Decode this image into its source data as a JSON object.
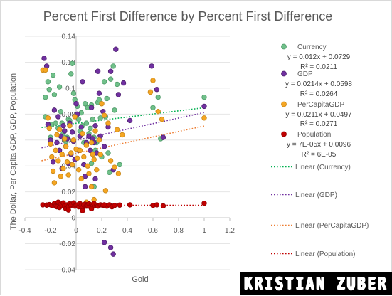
{
  "chart_data": {
    "type": "scatter",
    "title": "Percent First Difference by Percent First Difference",
    "xlabel": "Gold",
    "ylabel": "The Dollar, Per Capita GDP, GDP, Population",
    "xlim": [
      -0.4,
      1.2
    ],
    "ylim": [
      -0.04,
      0.14
    ],
    "x_ticks": [
      "-0.4",
      "-0.2",
      "0",
      "0.2",
      "0.4",
      "0.6",
      "0.8",
      "1",
      "1.2"
    ],
    "y_ticks": [
      "-0.04",
      "-0.02",
      "0",
      "0.02",
      "0.04",
      "0.06",
      "0.08",
      "0.1",
      "0.12",
      "0.14"
    ],
    "grid": "horizontal",
    "legend_position": "right",
    "series": [
      {
        "name": "Currency",
        "color": "#70c08a",
        "edge": "#4e9a68",
        "equation": "y = 0.012x + 0.0729",
        "r2": "R² = 0.0211",
        "trend": {
          "name": "Linear (Currency)",
          "slope": 0.012,
          "intercept": 0.0729,
          "color": "#00b050"
        },
        "points": [
          [
            -0.24,
            0.078
          ],
          [
            -0.24,
            0.093
          ],
          [
            -0.22,
            0.105
          ],
          [
            -0.21,
            0.099
          ],
          [
            -0.19,
            0.072
          ],
          [
            -0.18,
            0.11
          ],
          [
            -0.17,
            0.095
          ],
          [
            -0.16,
            0.073
          ],
          [
            -0.14,
            0.069
          ],
          [
            -0.13,
            0.101
          ],
          [
            -0.12,
            0.082
          ],
          [
            -0.11,
            0.073
          ],
          [
            -0.1,
            0.065
          ],
          [
            -0.09,
            0.067
          ],
          [
            -0.08,
            0.059
          ],
          [
            -0.07,
            0.062
          ],
          [
            -0.06,
            0.076
          ],
          [
            -0.05,
            0.075
          ],
          [
            -0.04,
            0.111
          ],
          [
            -0.03,
            0.119
          ],
          [
            -0.02,
            0.096
          ],
          [
            -0.01,
            0.091
          ],
          [
            0.0,
            0.078
          ],
          [
            0.01,
            0.086
          ],
          [
            0.02,
            0.076
          ],
          [
            0.03,
            0.067
          ],
          [
            0.04,
            0.081
          ],
          [
            0.05,
            0.071
          ],
          [
            0.07,
            0.088
          ],
          [
            0.08,
            0.073
          ],
          [
            0.09,
            0.085
          ],
          [
            0.1,
            0.065
          ],
          [
            0.11,
            0.069
          ],
          [
            0.12,
            0.087
          ],
          [
            0.13,
            0.076
          ],
          [
            0.14,
            0.062
          ],
          [
            0.15,
            0.052
          ],
          [
            0.16,
            0.058
          ],
          [
            0.17,
            0.089
          ],
          [
            0.18,
            0.091
          ],
          [
            0.19,
            0.077
          ],
          [
            0.2,
            0.047
          ],
          [
            0.22,
            0.105
          ],
          [
            0.23,
            0.078
          ],
          [
            0.24,
            0.092
          ],
          [
            0.25,
            0.05
          ],
          [
            0.27,
            0.107
          ],
          [
            0.29,
            0.117
          ],
          [
            0.3,
            0.083
          ],
          [
            0.32,
            0.103
          ],
          [
            0.34,
            0.041
          ],
          [
            0.6,
            0.085
          ],
          [
            0.64,
            0.093
          ],
          [
            0.66,
            0.061
          ],
          [
            1.0,
            0.093
          ],
          [
            0.14,
            0.024
          ],
          [
            0.12,
            0.042
          ],
          [
            -0.2,
            0.062
          ],
          [
            0.06,
            0.058
          ],
          [
            0.26,
            0.035
          ]
        ]
      },
      {
        "name": "GDP",
        "color": "#7030a0",
        "edge": "#4f2070",
        "equation": "y = 0.0214x + 0.0598",
        "r2": "R² = 0.0264",
        "trend": {
          "name": "Linear (GDP)",
          "slope": 0.0214,
          "intercept": 0.0598,
          "color": "#7030a0"
        },
        "points": [
          [
            -0.25,
            0.123
          ],
          [
            -0.23,
            0.117
          ],
          [
            -0.22,
            0.072
          ],
          [
            -0.2,
            0.06
          ],
          [
            -0.18,
            0.043
          ],
          [
            -0.17,
            0.083
          ],
          [
            -0.15,
            0.058
          ],
          [
            -0.14,
            0.078
          ],
          [
            -0.13,
            0.052
          ],
          [
            -0.12,
            0.063
          ],
          [
            -0.11,
            0.038
          ],
          [
            -0.1,
            0.071
          ],
          [
            -0.09,
            0.067
          ],
          [
            -0.08,
            0.055
          ],
          [
            -0.07,
            0.061
          ],
          [
            -0.06,
            0.042
          ],
          [
            -0.05,
            0.073
          ],
          [
            -0.04,
            0.049
          ],
          [
            -0.03,
            0.066
          ],
          [
            -0.02,
            0.059
          ],
          [
            -0.01,
            0.045
          ],
          [
            0.0,
            0.088
          ],
          [
            0.01,
            0.08
          ],
          [
            0.02,
            0.052
          ],
          [
            0.03,
            0.063
          ],
          [
            0.04,
            0.07
          ],
          [
            0.05,
            0.105
          ],
          [
            0.06,
            0.041
          ],
          [
            0.07,
            0.032
          ],
          [
            0.08,
            0.058
          ],
          [
            0.1,
            0.063
          ],
          [
            0.11,
            0.052
          ],
          [
            0.12,
            0.085
          ],
          [
            0.13,
            0.061
          ],
          [
            0.14,
            0.058
          ],
          [
            0.15,
            0.071
          ],
          [
            0.16,
            0.05
          ],
          [
            0.17,
            0.113
          ],
          [
            0.18,
            0.096
          ],
          [
            0.19,
            0.063
          ],
          [
            0.21,
            0.082
          ],
          [
            0.22,
            0.055
          ],
          [
            0.25,
            0.07
          ],
          [
            0.27,
            0.113
          ],
          [
            0.29,
            0.037
          ],
          [
            0.31,
            0.13
          ],
          [
            0.33,
            0.095
          ],
          [
            0.37,
            0.104
          ],
          [
            0.42,
            0.075
          ],
          [
            0.59,
            0.117
          ],
          [
            0.63,
            0.099
          ],
          [
            0.68,
            0.062
          ],
          [
            1.0,
            0.086
          ],
          [
            0.22,
            -0.019
          ],
          [
            0.27,
            -0.023
          ],
          [
            0.29,
            -0.028
          ],
          [
            0.15,
            0.03
          ],
          [
            0.07,
            0.024
          ]
        ]
      },
      {
        "name": "PerCapitaGDP",
        "color": "#f5a623",
        "edge": "#c88616",
        "equation": "y = 0.0211x + 0.0497",
        "r2": "R² = 0.0271",
        "trend": {
          "name": "Linear (PerCapitaGDP)",
          "slope": 0.0211,
          "intercept": 0.0497,
          "color": "#ed7d31"
        },
        "points": [
          [
            -0.26,
            0.114
          ],
          [
            -0.24,
            0.114
          ],
          [
            -0.22,
            0.077
          ],
          [
            -0.21,
            0.069
          ],
          [
            -0.2,
            0.057
          ],
          [
            -0.19,
            0.047
          ],
          [
            -0.18,
            0.036
          ],
          [
            -0.17,
            0.027
          ],
          [
            -0.16,
            0.052
          ],
          [
            -0.15,
            0.064
          ],
          [
            -0.14,
            0.044
          ],
          [
            -0.13,
            0.068
          ],
          [
            -0.12,
            0.032
          ],
          [
            -0.11,
            0.049
          ],
          [
            -0.1,
            0.038
          ],
          [
            -0.09,
            0.061
          ],
          [
            -0.08,
            0.055
          ],
          [
            -0.07,
            0.043
          ],
          [
            -0.06,
            0.033
          ],
          [
            -0.05,
            0.071
          ],
          [
            -0.04,
            0.05
          ],
          [
            -0.03,
            0.041
          ],
          [
            -0.02,
            0.06
          ],
          [
            -0.01,
            0.078
          ],
          [
            0.0,
            0.053
          ],
          [
            0.01,
            0.046
          ],
          [
            0.02,
            0.037
          ],
          [
            0.03,
            0.052
          ],
          [
            0.04,
            0.03
          ],
          [
            0.05,
            0.065
          ],
          [
            0.06,
            0.047
          ],
          [
            0.08,
            0.056
          ],
          [
            0.09,
            0.04
          ],
          [
            0.1,
            0.034
          ],
          [
            0.12,
            0.058
          ],
          [
            0.13,
            0.049
          ],
          [
            0.14,
            0.045
          ],
          [
            0.15,
            0.067
          ],
          [
            0.16,
            0.037
          ],
          [
            0.18,
            0.06
          ],
          [
            0.19,
            0.049
          ],
          [
            0.2,
            0.088
          ],
          [
            0.22,
            0.079
          ],
          [
            0.25,
            0.073
          ],
          [
            0.27,
            0.044
          ],
          [
            0.3,
            0.039
          ],
          [
            0.32,
            0.068
          ],
          [
            0.36,
            0.064
          ],
          [
            0.58,
            0.097
          ],
          [
            0.6,
            0.106
          ],
          [
            0.64,
            0.082
          ],
          [
            0.67,
            0.076
          ],
          [
            1.0,
            0.077
          ],
          [
            0.14,
            0.014
          ],
          [
            0.08,
            0.012
          ],
          [
            0.12,
            0.024
          ],
          [
            0.23,
            0.021
          ],
          [
            0.33,
            0.034
          ]
        ]
      },
      {
        "name": "Population",
        "color": "#c00000",
        "edge": "#8e0000",
        "equation": "y = 7E-05x + 0.0096",
        "r2": "R² = 6E-05",
        "trend": {
          "name": "Linear (Population)",
          "slope": 7e-05,
          "intercept": 0.0096,
          "color": "#c00000"
        },
        "points": [
          [
            -0.26,
            0.01
          ],
          [
            -0.23,
            0.0098
          ],
          [
            -0.21,
            0.0102
          ],
          [
            -0.19,
            0.0095
          ],
          [
            -0.17,
            0.011
          ],
          [
            -0.16,
            0.009
          ],
          [
            -0.15,
            0.0085
          ],
          [
            -0.14,
            0.012
          ],
          [
            -0.13,
            0.008
          ],
          [
            -0.12,
            0.0105
          ],
          [
            -0.11,
            0.0095
          ],
          [
            -0.1,
            0.0115
          ],
          [
            -0.09,
            0.009
          ],
          [
            -0.08,
            0.007
          ],
          [
            -0.07,
            0.01
          ],
          [
            -0.06,
            0.0088
          ],
          [
            -0.05,
            0.0108
          ],
          [
            -0.04,
            0.0095
          ],
          [
            -0.03,
            0.0102
          ],
          [
            -0.02,
            0.0115
          ],
          [
            -0.01,
            0.009
          ],
          [
            0.0,
            0.0095
          ],
          [
            0.01,
            0.01
          ],
          [
            0.02,
            0.0085
          ],
          [
            0.03,
            0.011
          ],
          [
            0.04,
            0.0095
          ],
          [
            0.05,
            0.008
          ],
          [
            0.06,
            0.01
          ],
          [
            0.07,
            0.0105
          ],
          [
            0.08,
            0.009
          ],
          [
            0.09,
            0.0095
          ],
          [
            0.1,
            0.0108
          ],
          [
            0.11,
            0.0085
          ],
          [
            0.12,
            0.01
          ],
          [
            0.13,
            0.009
          ],
          [
            0.14,
            0.011
          ],
          [
            0.16,
            0.0095
          ],
          [
            0.17,
            0.009
          ],
          [
            0.19,
            0.01
          ],
          [
            0.21,
            0.0095
          ],
          [
            0.24,
            0.009
          ],
          [
            0.26,
            0.01
          ],
          [
            0.28,
            0.0085
          ],
          [
            0.3,
            0.0095
          ],
          [
            0.34,
            0.0098
          ],
          [
            0.42,
            0.01
          ],
          [
            0.6,
            0.0095
          ],
          [
            0.63,
            0.01
          ],
          [
            0.68,
            0.0092
          ],
          [
            1.0,
            0.0112
          ],
          [
            0.05,
            0.0055
          ],
          [
            -0.06,
            0.006
          ],
          [
            0.12,
            0.007
          ],
          [
            0.22,
            0.01
          ]
        ]
      }
    ]
  },
  "watermark": {
    "text": "KRISTIAN ZUBER"
  }
}
